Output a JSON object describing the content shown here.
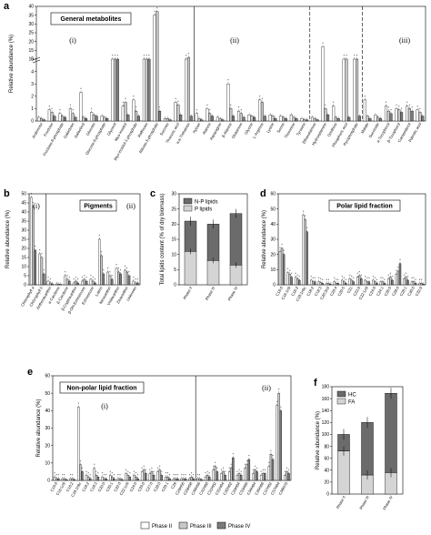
{
  "colors": {
    "phase2": "#ffffff",
    "phase3": "#c8c8c8",
    "phase4": "#7a7a7a",
    "np_lipids": "#6b6b6b",
    "p_lipids": "#d4d4d4",
    "hc": "#6b6b6b",
    "fa": "#d4d4d4"
  },
  "chart_data": [
    {
      "panel": "a",
      "type": "bar",
      "title": "General metabolites",
      "ylabel": "Relative abundance (%)",
      "ylim": [
        0,
        40
      ],
      "axis_break": [
        5,
        10
      ],
      "yticks": [
        "0",
        "1",
        "2",
        "3",
        "4",
        "5",
        "10",
        "15",
        "20",
        "25",
        "30",
        "35",
        "40"
      ],
      "groups": [
        "(i)",
        "(ii)",
        "(iii)"
      ],
      "series": [
        "Phase II",
        "Phase III",
        "Phase IV"
      ],
      "categories": [
        "Arabinose",
        "Fructose",
        "Fructose-6-phosphate",
        "Galactose",
        "Galactinol",
        "Glucose",
        "Glucose-6-phosphate",
        "Glycerol",
        "Myo-inositol",
        "Myo-inositol-1-phosphate",
        "Raffinose",
        "Ribose-5-phosphate",
        "Sucrose",
        "Threonic acid",
        "α,α-Trehalose",
        "Xylose",
        "Alanine",
        "Asparagine",
        "β-Alanine",
        "Glutamine",
        "Glycine",
        "L-Arginine",
        "Lysine",
        "Serine",
        "Threonine",
        "Tyrosine",
        "Ethanolamine",
        "Hydroxylamine",
        "Ornithine",
        "Phosphoric acid",
        "Pyrophosphate",
        "Malate",
        "Succinate",
        "α-Tocopherol",
        "β-Tocopherol",
        "Campesterol",
        "Palmitic acid"
      ],
      "group_index": [
        0,
        0,
        0,
        0,
        0,
        0,
        0,
        0,
        0,
        0,
        0,
        0,
        0,
        0,
        0,
        1,
        1,
        1,
        1,
        1,
        1,
        1,
        1,
        1,
        1,
        1,
        1,
        1,
        1,
        1,
        1,
        2,
        2,
        2,
        2,
        2,
        2
      ],
      "values": [
        [
          0.3,
          0.2,
          0.1
        ],
        [
          0.9,
          0.7,
          0.4
        ],
        [
          0.6,
          0.4,
          0.3
        ],
        [
          1.0,
          0.6,
          0.3
        ],
        [
          2.3,
          0.3,
          0.2
        ],
        [
          0.7,
          0.5,
          0.4
        ],
        [
          0.4,
          0.3,
          0.2
        ],
        [
          9,
          8,
          9
        ],
        [
          1.2,
          1.5,
          0.5
        ],
        [
          1.7,
          0.8,
          0.4
        ],
        [
          9,
          9,
          10
        ],
        [
          35,
          37,
          0.8
        ],
        [
          0.2,
          0.2,
          0.1
        ],
        [
          1.5,
          1.3,
          0.5
        ],
        [
          10,
          11,
          0.4
        ],
        [
          0.6,
          0.2,
          0.1
        ],
        [
          1.0,
          0.6,
          0.4
        ],
        [
          0.3,
          0.2,
          0.1
        ],
        [
          3.0,
          1.0,
          0.4
        ],
        [
          0.8,
          0.6,
          0.3
        ],
        [
          0.5,
          0.4,
          0.3
        ],
        [
          1.7,
          1.5,
          0.4
        ],
        [
          0.5,
          0.4,
          0.2
        ],
        [
          0.4,
          0.3,
          0.2
        ],
        [
          0.5,
          0.3,
          0.2
        ],
        [
          0.2,
          0.1,
          0.1
        ],
        [
          0.3,
          0.2,
          0.1
        ],
        [
          17,
          1.0,
          0.5
        ],
        [
          1.2,
          0.3,
          0.2
        ],
        [
          8,
          7,
          0.3
        ],
        [
          8,
          7,
          0.4
        ],
        [
          1.7,
          0.4,
          0.2
        ],
        [
          0.5,
          0.3,
          0.2
        ],
        [
          1.2,
          0.8,
          0.6
        ],
        [
          1.0,
          0.9,
          0.7
        ],
        [
          1.2,
          1.0,
          0.8
        ],
        [
          0.9,
          0.7,
          0.4
        ]
      ]
    },
    {
      "panel": "b",
      "type": "bar",
      "title": "Pigments",
      "ylabel": "Relative abundance (%)",
      "ylim": [
        0,
        50
      ],
      "yticks": [
        "0",
        "5",
        "10",
        "15",
        "20",
        "25",
        "30",
        "35",
        "40",
        "45",
        "50"
      ],
      "groups": [
        "(i)",
        "(ii)"
      ],
      "series": [
        "Phase II",
        "Phase III",
        "Phase IV"
      ],
      "categories": [
        "Chlorophyll a",
        "Chlorophyll b",
        "Antheraxanthin",
        "α-Carotene",
        "β-Carotene",
        "β-Cryptoxanthin",
        "β-OH-Echinenone",
        "Echinenone",
        "Lutein",
        "Neoxanthin",
        "Violaxanthin",
        "Zeaxanthin",
        "Unknown"
      ],
      "group_index": [
        0,
        0,
        1,
        1,
        1,
        1,
        1,
        1,
        1,
        1,
        1,
        1,
        1
      ],
      "values": [
        [
          48,
          43,
          19
        ],
        [
          17,
          15,
          6
        ],
        [
          2,
          1,
          0.5
        ],
        [
          0.5,
          0.4,
          0.2
        ],
        [
          5,
          3,
          2
        ],
        [
          1,
          2,
          1
        ],
        [
          2,
          3,
          2
        ],
        [
          3,
          2,
          1
        ],
        [
          25,
          16,
          6
        ],
        [
          7,
          5,
          3
        ],
        [
          9,
          7,
          6
        ],
        [
          8,
          7,
          5
        ],
        [
          2,
          1,
          1
        ]
      ]
    },
    {
      "panel": "c",
      "type": "bar",
      "ylabel": "Total lipids content (% of dry biomass)",
      "ylim": [
        0,
        30
      ],
      "yticks": [
        "0",
        "5",
        "10",
        "15",
        "20",
        "25",
        "30"
      ],
      "categories": [
        "Phase II",
        "Phase III",
        "Phase IV"
      ],
      "series": [
        {
          "name": "N-P lipids",
          "values": [
            10,
            12,
            17
          ]
        },
        {
          "name": "P lipids",
          "values": [
            11,
            8,
            6.5
          ]
        }
      ]
    },
    {
      "panel": "d",
      "type": "bar",
      "title": "Polar lipid fraction",
      "ylabel": "Relative abundance (%)",
      "ylim": [
        0,
        60
      ],
      "yticks": [
        "0",
        "10",
        "20",
        "30",
        "40",
        "50",
        "60"
      ],
      "series": [
        "Phase II",
        "Phase III",
        "Phase IV"
      ],
      "categories": [
        "C16:0",
        "C16:1n9",
        "C16:2",
        "C18:1n9c",
        "C18:2",
        "C18:3",
        "C20:3n3",
        "C20:4",
        "C20:5",
        "C21",
        "C22:0",
        "C22:1n9",
        "C24:0",
        "C24:1",
        "C26:0",
        "C28:0",
        "C28:1",
        "C30:0",
        "C32:0"
      ],
      "values": [
        [
          22,
          24,
          20
        ],
        [
          8,
          7,
          5
        ],
        [
          5,
          4,
          3
        ],
        [
          46,
          43,
          35
        ],
        [
          3,
          2,
          2
        ],
        [
          2,
          1.5,
          1
        ],
        [
          1,
          1,
          0.5
        ],
        [
          2,
          1,
          1
        ],
        [
          3,
          2,
          1
        ],
        [
          4,
          3,
          2
        ],
        [
          5,
          6,
          4
        ],
        [
          3,
          2,
          2
        ],
        [
          3,
          2,
          1
        ],
        [
          2,
          2,
          1
        ],
        [
          4,
          5,
          3
        ],
        [
          7,
          9,
          14
        ],
        [
          4,
          5,
          3
        ],
        [
          2,
          2,
          1
        ],
        [
          1,
          1,
          0.5
        ]
      ]
    },
    {
      "panel": "e",
      "type": "bar",
      "title": "Non-polar lipid fraction",
      "ylabel": "Relative abundance (%)",
      "ylim": [
        0,
        60
      ],
      "yticks": [
        "0",
        "10",
        "20",
        "30",
        "40",
        "50",
        "60"
      ],
      "groups": [
        "(i)",
        "(ii)"
      ],
      "series": [
        "Phase II",
        "Phase III",
        "Phase IV"
      ],
      "categories": [
        "C16:0",
        "C16:1n9",
        "C16:2",
        "C18:1n9c",
        "C18:2",
        "C18:3",
        "C20:0",
        "C20:1",
        "C22:0",
        "C22:1n9",
        "C24:0",
        "C26:0",
        "C27:0",
        "C28:0",
        "C28:1",
        "C29",
        "C29H56",
        "C29H58",
        "C30H56",
        "C31H60",
        "C31H62",
        "C31H64",
        "C32H62",
        "C33H64",
        "C33H66",
        "C34H64",
        "C35H66",
        "C37H62",
        "C37H64",
        "C38H70"
      ],
      "group_index": [
        0,
        0,
        0,
        0,
        0,
        0,
        0,
        0,
        0,
        0,
        0,
        0,
        0,
        0,
        0,
        0,
        0,
        0,
        1,
        1,
        1,
        1,
        1,
        1,
        1,
        1,
        1,
        1,
        1,
        1
      ],
      "values": [
        [
          2,
          1,
          1
        ],
        [
          1,
          1,
          0.5
        ],
        [
          1,
          1,
          0.5
        ],
        [
          42,
          9,
          5
        ],
        [
          3,
          2,
          1
        ],
        [
          7,
          3,
          2
        ],
        [
          2,
          1,
          1
        ],
        [
          3,
          2,
          1
        ],
        [
          1,
          1,
          0.5
        ],
        [
          4,
          3,
          2
        ],
        [
          3,
          2,
          1
        ],
        [
          5,
          6,
          4
        ],
        [
          4,
          5,
          3
        ],
        [
          5,
          6,
          3
        ],
        [
          2,
          2,
          1
        ],
        [
          1,
          1,
          1
        ],
        [
          1,
          1,
          1
        ],
        [
          1,
          2,
          1
        ],
        [
          1,
          1,
          0.5
        ],
        [
          2,
          3,
          2
        ],
        [
          6,
          8,
          5
        ],
        [
          4,
          5,
          3
        ],
        [
          5,
          7,
          13
        ],
        [
          3,
          4,
          3
        ],
        [
          7,
          9,
          12
        ],
        [
          4,
          6,
          5
        ],
        [
          3,
          4,
          4
        ],
        [
          8,
          15,
          12
        ],
        [
          43,
          50,
          40
        ],
        [
          3,
          5,
          4
        ]
      ]
    },
    {
      "panel": "f",
      "type": "bar",
      "ylabel": "Relative abundance (%)",
      "ylim": [
        0,
        180
      ],
      "yticks": [
        "0",
        "20",
        "40",
        "60",
        "80",
        "100",
        "120",
        "140",
        "160",
        "180"
      ],
      "categories": [
        "Phase II",
        "Phase III",
        "Phase IV"
      ],
      "series": [
        {
          "name": "HC",
          "values": [
            28,
            88,
            133
          ]
        },
        {
          "name": "FA",
          "values": [
            72,
            32,
            36
          ]
        }
      ]
    }
  ],
  "legend_bottom": {
    "items": [
      "Phase II",
      "Phase III",
      "Phase IV"
    ]
  }
}
